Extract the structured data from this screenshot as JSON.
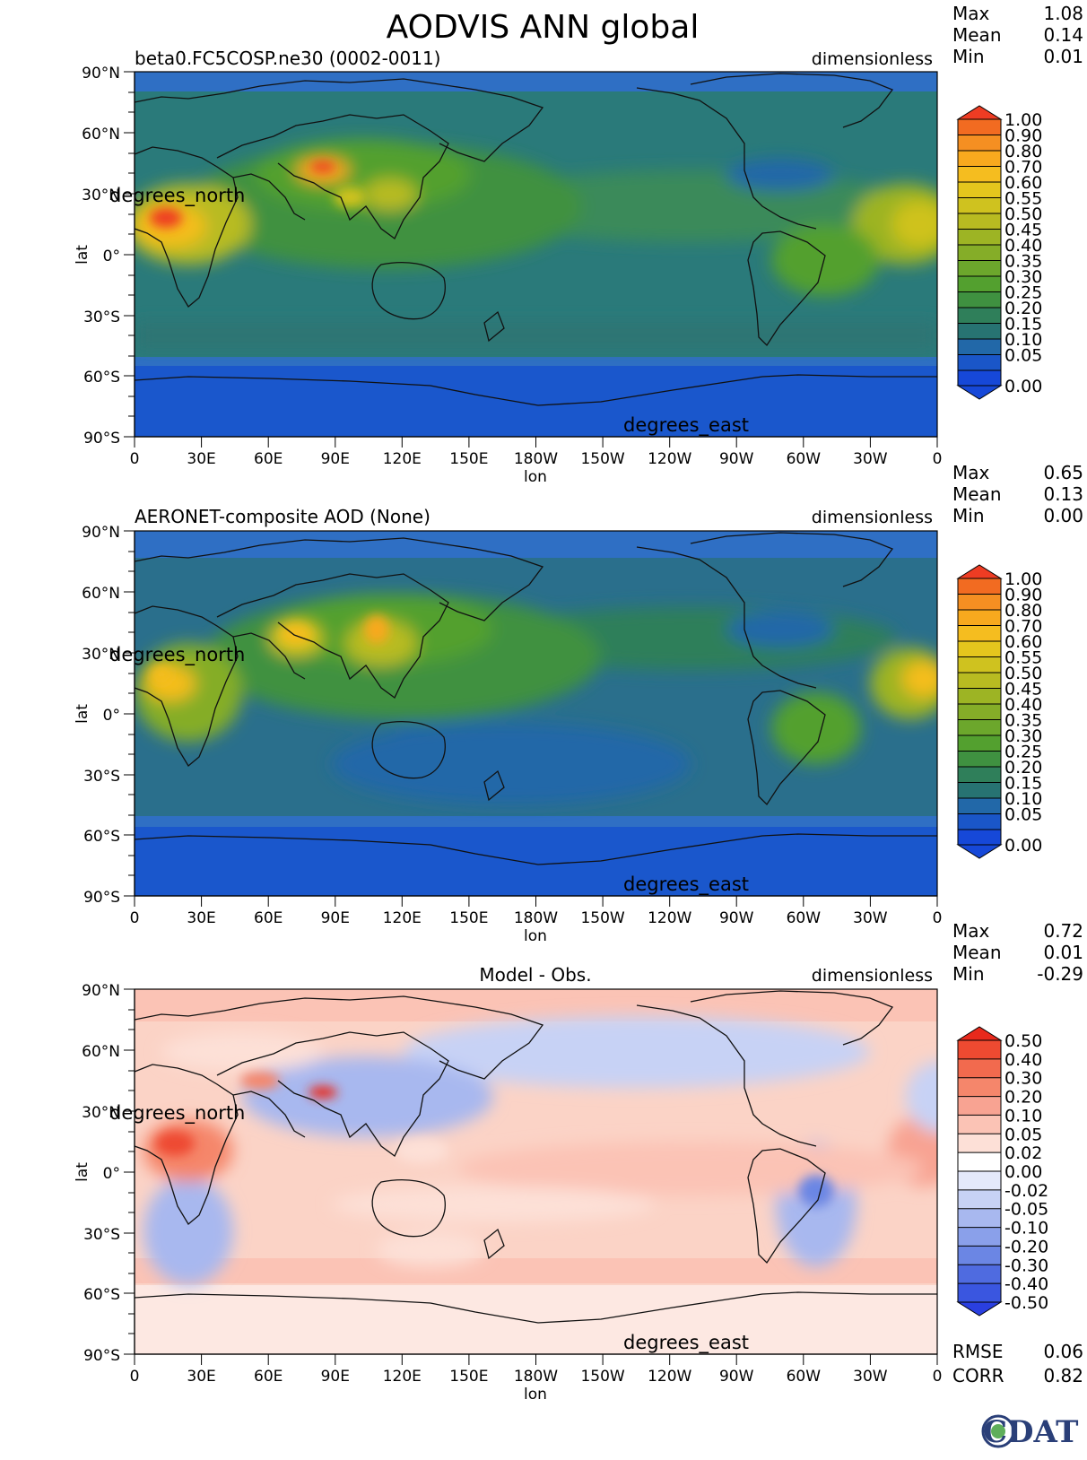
{
  "title": "AODVIS ANN global",
  "panels": [
    {
      "id": "test",
      "name": "beta0.FC5COSP.ne30 (0002-0011)",
      "units": "dimensionless",
      "stats": [
        {
          "label": "Max",
          "value": "1.08"
        },
        {
          "label": "Mean",
          "value": "0.14"
        },
        {
          "label": "Min",
          "value": "0.01"
        }
      ],
      "colorbar": {
        "labels": [
          "1.00",
          "0.90",
          "0.80",
          "0.70",
          "0.60",
          "0.55",
          "0.50",
          "0.45",
          "0.40",
          "0.35",
          "0.30",
          "0.25",
          "0.20",
          "0.15",
          "0.10",
          "0.05",
          "0.00"
        ],
        "colors": [
          "#ee3c23",
          "#f26b21",
          "#f58f22",
          "#f8a91e",
          "#f5bd1f",
          "#e5c61d",
          "#cfc21f",
          "#b8bb21",
          "#9db424",
          "#85ad28",
          "#6ca72c",
          "#53a02f",
          "#3f9140",
          "#2f7f5a",
          "#277372",
          "#2268a8",
          "#1a56c8",
          "#1648d8"
        ]
      },
      "x_axis": {
        "label": "lon",
        "ticks": [
          "0",
          "30E",
          "60E",
          "90E",
          "120E",
          "150E",
          "180W",
          "150W",
          "120W",
          "90W",
          "60W",
          "30W",
          "0"
        ]
      },
      "y_axis": {
        "label": "lat",
        "ticks": [
          "90°N",
          "60°N",
          "30°N",
          "0°",
          "30°S",
          "60°S",
          "90°S"
        ]
      },
      "y_units": "degrees_north",
      "x_units": "degrees_east"
    },
    {
      "id": "ref",
      "name": "AERONET-composite AOD (None)",
      "units": "dimensionless",
      "stats": [
        {
          "label": "Max",
          "value": "0.65"
        },
        {
          "label": "Mean",
          "value": "0.13"
        },
        {
          "label": "Min",
          "value": "0.00"
        }
      ],
      "colorbar": {
        "labels": [
          "1.00",
          "0.90",
          "0.80",
          "0.70",
          "0.60",
          "0.55",
          "0.50",
          "0.45",
          "0.40",
          "0.35",
          "0.30",
          "0.25",
          "0.20",
          "0.15",
          "0.10",
          "0.05",
          "0.00"
        ],
        "colors": [
          "#ee3c23",
          "#f26b21",
          "#f58f22",
          "#f8a91e",
          "#f5bd1f",
          "#e5c61d",
          "#cfc21f",
          "#b8bb21",
          "#9db424",
          "#85ad28",
          "#6ca72c",
          "#53a02f",
          "#3f9140",
          "#2f7f5a",
          "#277372",
          "#2268a8",
          "#1a56c8",
          "#1648d8"
        ]
      },
      "x_axis": {
        "label": "lon",
        "ticks": [
          "0",
          "30E",
          "60E",
          "90E",
          "120E",
          "150E",
          "180W",
          "150W",
          "120W",
          "90W",
          "60W",
          "30W",
          "0"
        ]
      },
      "y_axis": {
        "label": "lat",
        "ticks": [
          "90°N",
          "60°N",
          "30°N",
          "0°",
          "30°S",
          "60°S",
          "90°S"
        ]
      },
      "y_units": "degrees_north",
      "x_units": "degrees_east"
    },
    {
      "id": "diff",
      "name": "Model - Obs.",
      "units": "dimensionless",
      "stats": [
        {
          "label": "Max",
          "value": "0.72"
        },
        {
          "label": "Mean",
          "value": "0.01"
        },
        {
          "label": "Min",
          "value": "-0.29"
        }
      ],
      "extra_stats": [
        {
          "label": "RMSE",
          "value": "0.06"
        },
        {
          "label": "CORR",
          "value": "0.82"
        }
      ],
      "colorbar": {
        "labels": [
          "0.50",
          "0.40",
          "0.30",
          "0.20",
          "0.10",
          "0.05",
          "0.02",
          "0.00",
          "-0.02",
          "-0.05",
          "-0.10",
          "-0.20",
          "-0.30",
          "-0.40",
          "-0.50"
        ],
        "colors": [
          "#e8291c",
          "#ee4a31",
          "#f26a4e",
          "#f5866b",
          "#f8a392",
          "#fbc3b5",
          "#fde0d7",
          "#ffffff",
          "#e4e9fb",
          "#c7d2f5",
          "#a8b8ef",
          "#8aa0ea",
          "#6b86e4",
          "#4f6be0",
          "#3a56e0",
          "#2a3fe0"
        ]
      },
      "x_axis": {
        "label": "lon",
        "ticks": [
          "0",
          "30E",
          "60E",
          "90E",
          "120E",
          "150E",
          "180W",
          "150W",
          "120W",
          "90W",
          "60W",
          "30W",
          "0"
        ]
      },
      "y_axis": {
        "label": "lat",
        "ticks": [
          "90°N",
          "60°N",
          "30°N",
          "0°",
          "30°S",
          "60°S",
          "90°S"
        ]
      },
      "y_units": "degrees_north",
      "x_units": "degrees_east"
    }
  ],
  "logo": "CDAT"
}
